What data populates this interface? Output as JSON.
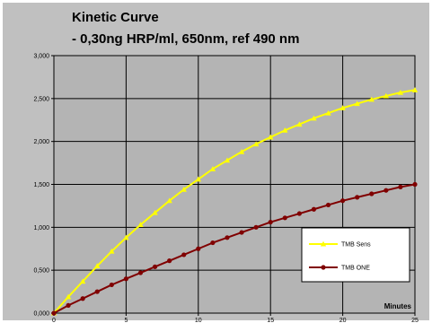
{
  "chart_data": {
    "type": "line",
    "title_line1": "Kinetic Curve",
    "title_line2": "- 0,30ng HRP/ml, 650nm, ref 490 nm",
    "xlabel": "Minutes",
    "ylabel": "",
    "xlim": [
      0,
      25
    ],
    "ylim": [
      0,
      3
    ],
    "grid": true,
    "legend_position": "bottom-right",
    "x_ticks": [
      "0",
      "5",
      "10",
      "15",
      "20",
      "25"
    ],
    "y_ticks": [
      "0,000",
      "0,500",
      "1,000",
      "1,500",
      "2,000",
      "2,500",
      "3,000"
    ],
    "x": [
      0,
      1,
      2,
      3,
      4,
      5,
      6,
      7,
      8,
      9,
      10,
      11,
      12,
      13,
      14,
      15,
      16,
      17,
      18,
      19,
      20,
      21,
      22,
      23,
      24,
      25
    ],
    "series": [
      {
        "name": "TMB Sens",
        "color": "#ffff00",
        "marker": "triangle",
        "values": [
          0.0,
          0.19,
          0.37,
          0.55,
          0.72,
          0.88,
          1.03,
          1.17,
          1.31,
          1.44,
          1.56,
          1.68,
          1.78,
          1.88,
          1.97,
          2.05,
          2.13,
          2.2,
          2.27,
          2.33,
          2.39,
          2.44,
          2.49,
          2.53,
          2.57,
          2.6
        ]
      },
      {
        "name": "TMB ONE",
        "color": "#800000",
        "marker": "circle",
        "values": [
          0.0,
          0.09,
          0.17,
          0.25,
          0.33,
          0.4,
          0.47,
          0.54,
          0.61,
          0.68,
          0.75,
          0.82,
          0.88,
          0.94,
          1.0,
          1.06,
          1.11,
          1.16,
          1.21,
          1.26,
          1.31,
          1.35,
          1.39,
          1.43,
          1.47,
          1.5
        ]
      }
    ],
    "colors": {
      "page_background": "#ffffff",
      "chart_background": "#c0c0c0",
      "plot_background": "#b4b4b4",
      "gridline": "#000000"
    }
  }
}
